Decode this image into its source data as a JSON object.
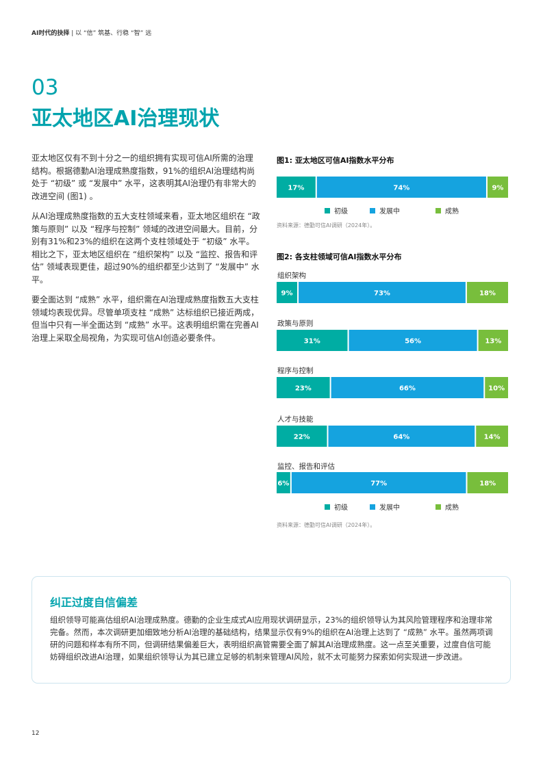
{
  "header": {
    "bold": "AI时代的抉择",
    "sep": " | ",
    "rest": "以 “信” 筑基、行稳 “智” 远"
  },
  "section": {
    "number": "03",
    "title": "亚太地区AI治理现状"
  },
  "body": {
    "paragraphs": [
      "亚太地区仅有不到十分之一的组织拥有实现可信AI所需的治理结构。根据德勤AI治理成熟度指数，91%的组织AI治理结构尚处于 “初级” 或 “发展中” 水平，这表明其AI治理仍有非常大的改进空间 (图1) 。",
      "从AI治理成熟度指数的五大支柱领域来看，亚太地区组织在 “政策与原则” 以及 “程序与控制” 领域的改进空间最大。目前，分别有31%和23%的组织在这两个支柱领域处于 “初级” 水平。相比之下，亚太地区组织在 “组织架构” 以及 “监控、报告和评估” 领域表现更佳，超过90%的组织都至少达到了 “发展中” 水平。",
      "要全面达到 “成熟” 水平，组织需在AI治理成熟度指数五大支柱领域均表现优异。尽管单项支柱 “成熟” 达标组织已接近两成，但当中只有一半全面达到 “成熟” 水平。这表明组织需在完善AI治理上采取全局视角，为实现可信AI创造必要条件。"
    ]
  },
  "colors": {
    "accent": "#00a3ad",
    "beginner": "#00ada3",
    "developing": "#15a3df",
    "mature": "#78be3c"
  },
  "legend": {
    "beginner": "初级",
    "developing": "发展中",
    "mature": "成熟"
  },
  "chart_data": [
    {
      "type": "bar",
      "orientation": "horizontal-stacked-100",
      "title": "图1: 亚太地区可信AI指数水平分布",
      "categories": [
        ""
      ],
      "series": [
        {
          "name": "初级",
          "values": [
            17
          ],
          "labels": [
            "17%"
          ]
        },
        {
          "name": "发展中",
          "values": [
            74
          ],
          "labels": [
            "74%"
          ]
        },
        {
          "name": "成熟",
          "values": [
            9
          ],
          "labels": [
            "9%"
          ]
        }
      ],
      "legend_position": "bottom",
      "source": "资料来源：德勤可信AI调研（2024年）。"
    },
    {
      "type": "bar",
      "orientation": "horizontal-stacked-100",
      "title": "图2: 各支柱领域可信AI指数水平分布",
      "categories": [
        "组织架构",
        "政策与原则",
        "程序与控制",
        "人才与技能",
        "监控、报告和评估"
      ],
      "series": [
        {
          "name": "初级",
          "values": [
            9,
            31,
            23,
            22,
            6
          ],
          "labels": [
            "9%",
            "31%",
            "23%",
            "22%",
            "6%"
          ]
        },
        {
          "name": "发展中",
          "values": [
            73,
            56,
            66,
            64,
            77
          ],
          "labels": [
            "73%",
            "56%",
            "66%",
            "64%",
            "77%"
          ]
        },
        {
          "name": "成熟",
          "values": [
            18,
            13,
            10,
            14,
            18
          ],
          "labels": [
            "18%",
            "13%",
            "10%",
            "14%",
            "18%"
          ]
        }
      ],
      "legend_position": "bottom",
      "source": "资料来源：德勤可信AI调研（2024年）。"
    }
  ],
  "box": {
    "title": "纠正过度自信偏差",
    "text": "组织领导可能高估组织AI治理成熟度。德勤的企业生成式AI应用现状调研显示，23%的组织领导认为其风险管理程序和治理非常完备。然而，本次调研更加细致地分析AI治理的基础结构，结果显示仅有9%的组织在AI治理上达到了 “成熟” 水平。虽然两项调研的问题和样本有所不同，但调研结果偏差巨大，表明组织高管需要全面了解其AI治理成熟度。这一点至关重要，过度自信可能妨碍组织改进AI治理，如果组织领导认为其已建立足够的机制来管理AI风险，就不太可能努力探索如何实现进一步改进。"
  },
  "page_number": "12"
}
